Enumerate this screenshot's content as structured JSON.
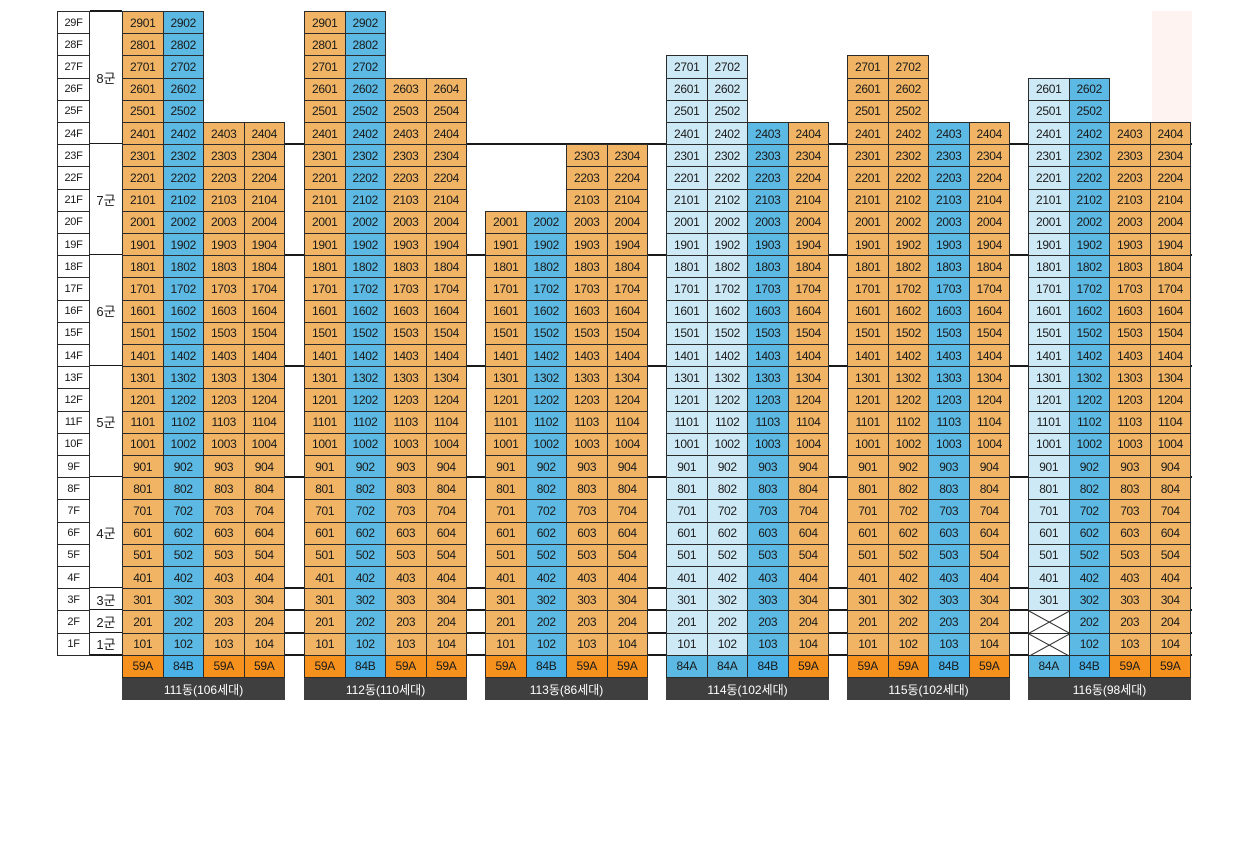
{
  "colors": {
    "59A": "#f0b464",
    "84B": "#5bb9e4",
    "84A": "#cde9f6",
    "type_59A": "#f7911e",
    "type_84B": "#4ab2e6",
    "type_84A": "#5bb9e4",
    "footer": "#3f3f3f"
  },
  "floor_labels": [
    "29F",
    "28F",
    "27F",
    "26F",
    "25F",
    "24F",
    "23F",
    "22F",
    "21F",
    "20F",
    "19F",
    "18F",
    "17F",
    "16F",
    "15F",
    "14F",
    "13F",
    "12F",
    "11F",
    "10F",
    "9F",
    "8F",
    "7F",
    "6F",
    "5F",
    "4F",
    "3F",
    "2F",
    "1F"
  ],
  "groups": [
    {
      "label": "8군",
      "top": 29,
      "bottom": 24
    },
    {
      "label": "7군",
      "top": 23,
      "bottom": 19
    },
    {
      "label": "6군",
      "top": 18,
      "bottom": 14
    },
    {
      "label": "5군",
      "top": 13,
      "bottom": 9
    },
    {
      "label": "4군",
      "top": 8,
      "bottom": 4
    },
    {
      "label": "3군",
      "top": 3,
      "bottom": 3
    },
    {
      "label": "2군",
      "top": 2,
      "bottom": 2
    },
    {
      "label": "1군",
      "top": 1,
      "bottom": 1
    }
  ],
  "buildings": [
    {
      "name": "111동(106세대)",
      "types": [
        "59A",
        "84B",
        "59A",
        "59A"
      ],
      "heights": [
        29,
        29,
        24,
        24
      ],
      "colors": [
        "59A",
        "84B",
        "59A",
        "59A"
      ],
      "missing": []
    },
    {
      "name": "112동(110세대)",
      "types": [
        "59A",
        "84B",
        "59A",
        "59A"
      ],
      "heights": [
        29,
        29,
        26,
        26
      ],
      "colors": [
        "59A",
        "84B",
        "59A",
        "59A"
      ],
      "missing": []
    },
    {
      "name": "113동(86세대)",
      "types": [
        "59A",
        "84B",
        "59A",
        "59A"
      ],
      "heights": [
        20,
        20,
        23,
        23
      ],
      "colors": [
        "59A",
        "84B",
        "59A",
        "59A"
      ],
      "missing": []
    },
    {
      "name": "114동(102세대)",
      "types": [
        "84A",
        "84A",
        "84B",
        "59A"
      ],
      "heights": [
        27,
        27,
        24,
        24
      ],
      "colors": [
        "84A",
        "84A",
        "84B",
        "59A"
      ],
      "missing": []
    },
    {
      "name": "115동(102세대)",
      "types": [
        "59A",
        "59A",
        "84B",
        "59A"
      ],
      "heights": [
        27,
        27,
        24,
        24
      ],
      "colors": [
        "59A",
        "59A",
        "84B",
        "59A"
      ],
      "missing": []
    },
    {
      "name": "116동(98세대)",
      "types": [
        "84A",
        "84B",
        "59A",
        "59A"
      ],
      "heights": [
        26,
        26,
        24,
        24
      ],
      "colors": [
        "84A",
        "84B",
        "59A",
        "59A"
      ],
      "missing": [
        [
          0,
          2
        ],
        [
          0,
          1
        ]
      ]
    }
  ]
}
